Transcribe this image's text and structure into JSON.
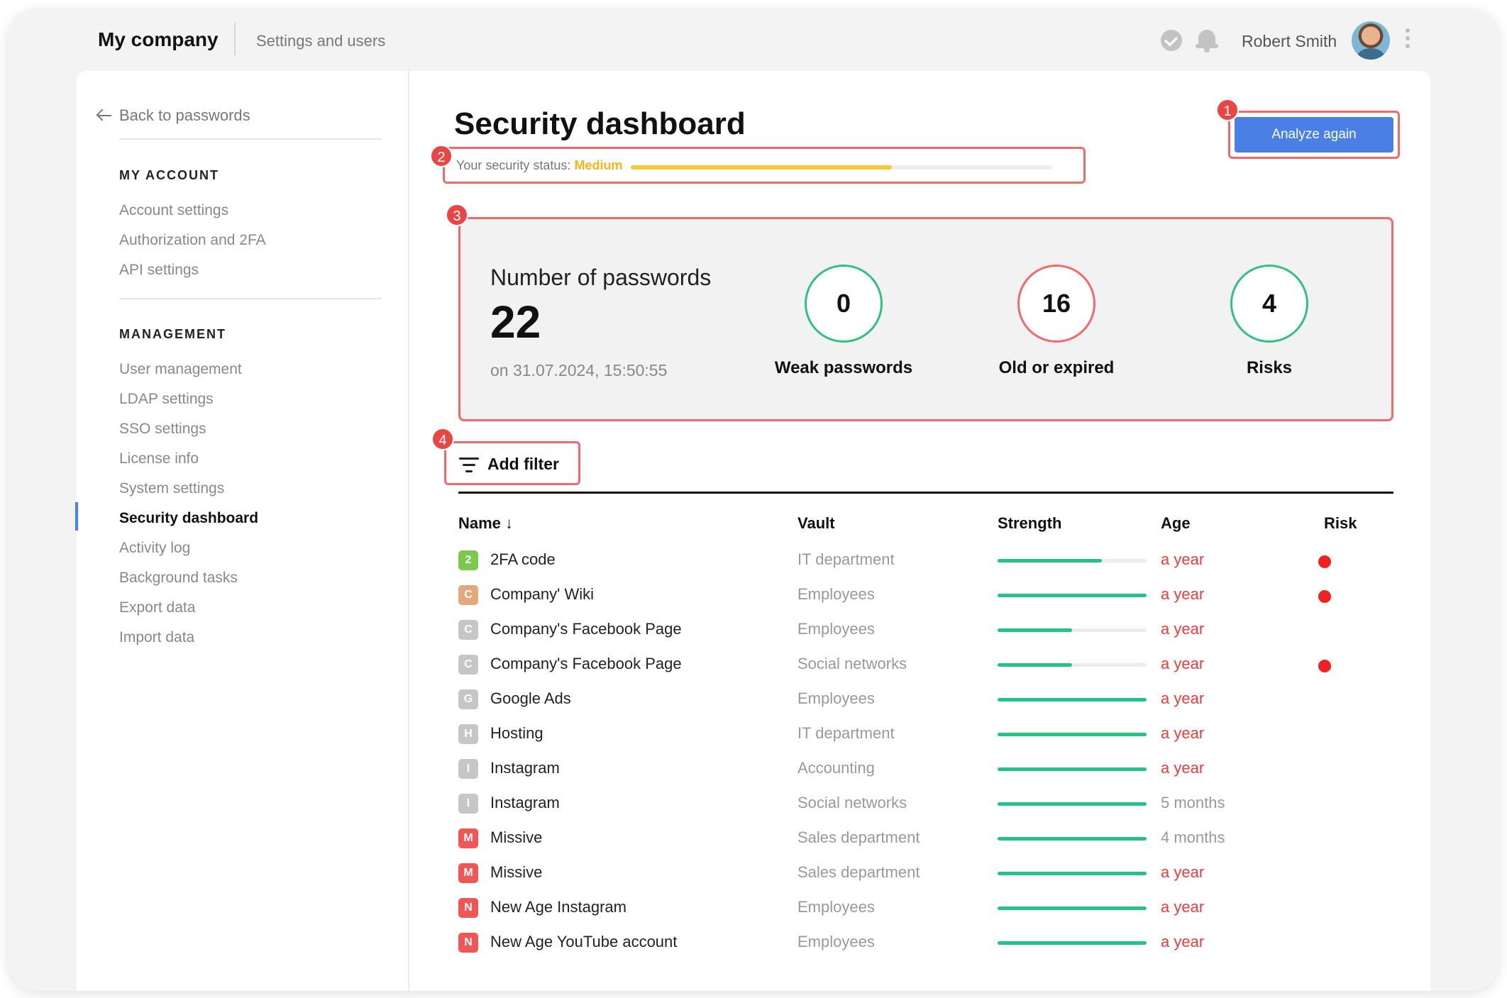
{
  "header": {
    "brand": "My company",
    "breadcrumb": "Settings and users",
    "user_name": "Robert Smith",
    "icons": [
      "check-circle-icon",
      "bell-icon",
      "avatar",
      "more-vertical-icon"
    ]
  },
  "sidebar": {
    "back_label": "Back to passwords",
    "sections": [
      {
        "heading": "MY ACCOUNT",
        "items": [
          "Account settings",
          "Authorization and 2FA",
          "API settings"
        ]
      },
      {
        "heading": "MANAGEMENT",
        "items": [
          "User management",
          "LDAP settings",
          "SSO settings",
          "License info",
          "System settings",
          "Security dashboard",
          "Activity log",
          "Background tasks",
          "Export data",
          "Import data"
        ]
      }
    ],
    "active_item": "Security dashboard"
  },
  "main": {
    "title": "Security dashboard",
    "analyze_label": "Analyze again",
    "status": {
      "label": "Your security status:",
      "value": "Medium",
      "level": 0.62,
      "color": "#f5b51c"
    },
    "stats": {
      "title": "Number of passwords",
      "count": "22",
      "date": "on 31.07.2024, 15:50:55",
      "metrics": [
        {
          "value": "0",
          "label": "Weak passwords",
          "color": "#2ec27e"
        },
        {
          "value": "16",
          "label": "Old or expired",
          "color": "#ef6a6a"
        },
        {
          "value": "4",
          "label": "Risks",
          "color": "#2ec27e"
        }
      ]
    },
    "filter_label": "Add filter",
    "badges": [
      "1",
      "2",
      "3",
      "4"
    ],
    "columns": {
      "name": "Name ↓",
      "vault": "Vault",
      "strength": "Strength",
      "age": "Age",
      "risk": "Risk"
    },
    "rows": [
      {
        "icon": "2",
        "icon_color": "#7cc94f",
        "name": "2FA code",
        "vault": "IT department",
        "strength": 0.7,
        "age": "a year",
        "age_alert": true,
        "risk": true
      },
      {
        "icon": "C",
        "icon_color": "#e3a97a",
        "name": "Company' Wiki",
        "vault": "Employees",
        "strength": 1.0,
        "age": "a year",
        "age_alert": true,
        "risk": true
      },
      {
        "icon": "C",
        "icon_color": "#c6c6c6",
        "name": "Company's Facebook Page",
        "vault": "Employees",
        "strength": 0.5,
        "age": "a year",
        "age_alert": true,
        "risk": false
      },
      {
        "icon": "C",
        "icon_color": "#c6c6c6",
        "name": "Company's Facebook Page",
        "vault": "Social networks",
        "strength": 0.5,
        "age": "a year",
        "age_alert": true,
        "risk": true
      },
      {
        "icon": "G",
        "icon_color": "#c6c6c6",
        "name": "Google Ads",
        "vault": "Employees",
        "strength": 1.0,
        "age": "a year",
        "age_alert": true,
        "risk": false
      },
      {
        "icon": "H",
        "icon_color": "#c6c6c6",
        "name": "Hosting",
        "vault": "IT department",
        "strength": 1.0,
        "age": "a year",
        "age_alert": true,
        "risk": false
      },
      {
        "icon": "I",
        "icon_color": "#c6c6c6",
        "name": "Instagram",
        "vault": "Accounting",
        "strength": 1.0,
        "age": "a year",
        "age_alert": true,
        "risk": false
      },
      {
        "icon": "I",
        "icon_color": "#c6c6c6",
        "name": "Instagram",
        "vault": "Social networks",
        "strength": 1.0,
        "age": "5 months",
        "age_alert": false,
        "risk": false
      },
      {
        "icon": "M",
        "icon_color": "#ef5757",
        "name": "Missive",
        "vault": "Sales department",
        "strength": 1.0,
        "age": "4 months",
        "age_alert": false,
        "risk": false
      },
      {
        "icon": "M",
        "icon_color": "#ef5757",
        "name": "Missive",
        "vault": "Sales department",
        "strength": 1.0,
        "age": "a year",
        "age_alert": true,
        "risk": false
      },
      {
        "icon": "N",
        "icon_color": "#ef5757",
        "name": "New Age Instagram",
        "vault": "Employees",
        "strength": 1.0,
        "age": "a year",
        "age_alert": true,
        "risk": false
      },
      {
        "icon": "N",
        "icon_color": "#ef5757",
        "name": "New Age YouTube account",
        "vault": "Employees",
        "strength": 1.0,
        "age": "a year",
        "age_alert": true,
        "risk": false
      }
    ]
  },
  "colors": {
    "accent": "#4a7fe6",
    "danger": "#ee2222",
    "strength": "#23c483",
    "highlight_border": "#f06a6a"
  }
}
